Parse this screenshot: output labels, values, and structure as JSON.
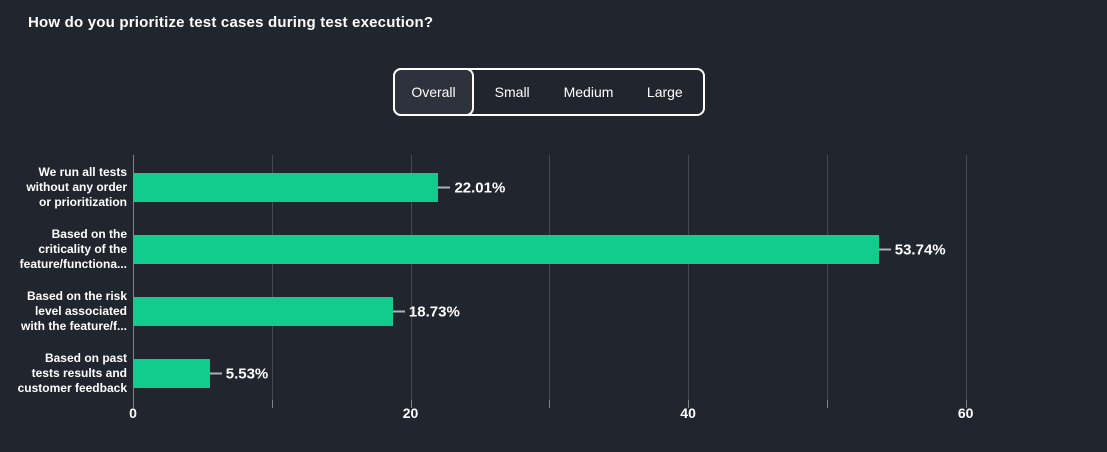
{
  "page": {
    "title": "How do you prioritize test cases during test execution?"
  },
  "tabs": {
    "items": [
      {
        "label": "Overall",
        "selected": true
      },
      {
        "label": "Small",
        "selected": false
      },
      {
        "label": "Medium",
        "selected": false
      },
      {
        "label": "Large",
        "selected": false
      }
    ]
  },
  "chart_data": {
    "type": "bar",
    "orientation": "horizontal",
    "title": "How do you prioritize test cases during test execution?",
    "categories": [
      "We run all tests without any order or prioritization",
      "Based on the criticality of the feature/functiona...",
      "Based on the risk level associated with the feature/f...",
      "Based on past tests results and customer feedback"
    ],
    "category_label_lines": [
      [
        "We run all tests",
        "without any order",
        "or prioritization"
      ],
      [
        "Based on the",
        "criticality of the",
        "feature/functiona..."
      ],
      [
        "Based on the risk",
        "level associated",
        "with the feature/f..."
      ],
      [
        "Based on past",
        "tests results and",
        "customer feedback"
      ]
    ],
    "values": [
      22.01,
      53.74,
      18.73,
      5.53
    ],
    "value_labels": [
      "22.01%",
      "53.74%",
      "18.73%",
      "5.53%"
    ],
    "xlabel": "",
    "ylabel": "",
    "xlim": [
      0,
      66.8
    ],
    "x_ticks": [
      0,
      10,
      20,
      30,
      40,
      50,
      60
    ],
    "x_tick_labels": [
      "0",
      "",
      "20",
      "",
      "40",
      "",
      "60"
    ],
    "grid": "vertical",
    "legend": null,
    "colors": {
      "background": "#20252e",
      "bar": "#12cc8d",
      "gridline": "#464b53",
      "axis_line": "#7e838b",
      "text": "#ffffff",
      "selected_tab_bg": "#2d323c",
      "tab_border": "#ffffff",
      "value_connector": "#aab0b6"
    }
  }
}
